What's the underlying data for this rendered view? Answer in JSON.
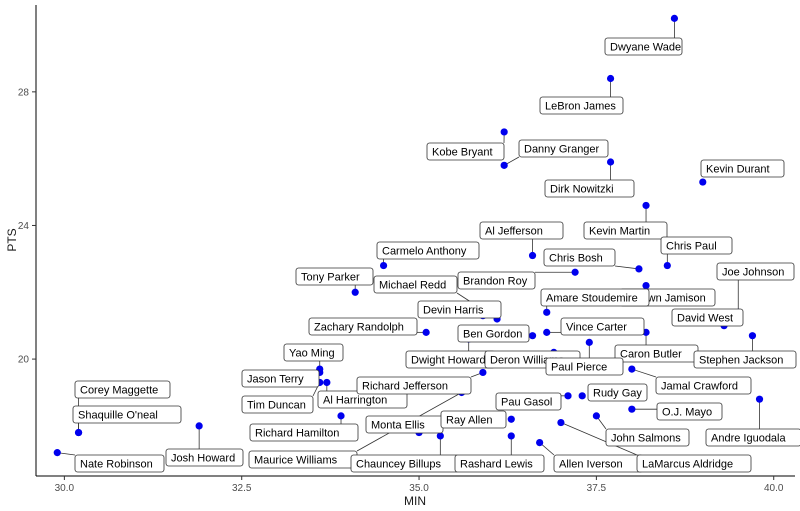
{
  "chart_data": {
    "type": "scatter",
    "title": "",
    "xlabel": "MIN",
    "ylabel": "PTS",
    "xlim": [
      29.6,
      40.3
    ],
    "ylim": [
      16.5,
      30.6
    ],
    "xticks": [
      30.0,
      32.5,
      35.0,
      37.5,
      40.0
    ],
    "xtick_labels": [
      "30.0",
      "32.5",
      "35.0",
      "37.5",
      "40.0"
    ],
    "yticks": [
      20,
      24,
      28
    ],
    "ytick_labels": [
      "20",
      "24",
      "28"
    ],
    "grid": false,
    "legend": "none",
    "colors": {
      "point": "#0000EE",
      "label_border": "#333333",
      "label_fill": "#FFFFFF"
    },
    "points": [
      {
        "name": "Dwyane Wade",
        "x": 38.6,
        "y": 30.2
      },
      {
        "name": "LeBron James",
        "x": 37.7,
        "y": 28.4
      },
      {
        "name": "Kobe Bryant",
        "x": 36.2,
        "y": 26.8
      },
      {
        "name": "Danny Granger",
        "x": 36.2,
        "y": 25.8
      },
      {
        "name": "Dirk Nowitzki",
        "x": 37.7,
        "y": 25.9
      },
      {
        "name": "Kevin Durant",
        "x": 39.0,
        "y": 25.3
      },
      {
        "name": "Kevin Martin",
        "x": 38.2,
        "y": 24.6
      },
      {
        "name": "Al Jefferson",
        "x": 36.6,
        "y": 23.1
      },
      {
        "name": "Chris Bosh",
        "x": 38.1,
        "y": 22.7
      },
      {
        "name": "Chris Paul",
        "x": 38.5,
        "y": 22.8
      },
      {
        "name": "Carmelo Anthony",
        "x": 34.5,
        "y": 22.8
      },
      {
        "name": "Brandon Roy",
        "x": 37.2,
        "y": 22.6
      },
      {
        "name": "Antawn Jamison",
        "x": 38.2,
        "y": 22.2
      },
      {
        "name": "Joe Johnson",
        "x": 39.5,
        "y": 21.4
      },
      {
        "name": "Tony Parker",
        "x": 34.1,
        "y": 22.0
      },
      {
        "name": "Michael Redd",
        "x": 36.1,
        "y": 21.2
      },
      {
        "name": "Amare Stoudemire",
        "x": 36.8,
        "y": 21.4
      },
      {
        "name": "Devin Harris",
        "x": 35.9,
        "y": 21.3
      },
      {
        "name": "David West",
        "x": 39.3,
        "y": 21.0
      },
      {
        "name": "Zachary Randolph",
        "x": 35.1,
        "y": 20.8
      },
      {
        "name": "Vince Carter",
        "x": 36.8,
        "y": 20.8
      },
      {
        "name": "Ben Gordon",
        "x": 36.6,
        "y": 20.7
      },
      {
        "name": "Caron Butler",
        "x": 38.2,
        "y": 20.8
      },
      {
        "name": "Stephen Jackson",
        "x": 39.7,
        "y": 20.7
      },
      {
        "name": "Yao Ming",
        "x": 33.6,
        "y": 19.7
      },
      {
        "name": "Jason Terry",
        "x": 33.6,
        "y": 19.6
      },
      {
        "name": "Dwight Howard",
        "x": 35.7,
        "y": 20.6
      },
      {
        "name": "Deron Williams",
        "x": 36.9,
        "y": 20.2
      },
      {
        "name": "Paul Pierce",
        "x": 37.4,
        "y": 20.5
      },
      {
        "name": "Jamal Crawford",
        "x": 38.0,
        "y": 19.7
      },
      {
        "name": "Al Harrington",
        "x": 33.7,
        "y": 19.3
      },
      {
        "name": "Richard Jefferson",
        "x": 35.9,
        "y": 19.6
      },
      {
        "name": "Tim Duncan",
        "x": 33.6,
        "y": 19.3
      },
      {
        "name": "Rudy Gay",
        "x": 37.3,
        "y": 18.9
      },
      {
        "name": "Pau Gasol",
        "x": 37.1,
        "y": 18.9
      },
      {
        "name": "O.J. Mayo",
        "x": 38.0,
        "y": 18.5
      },
      {
        "name": "Andre Iguodala",
        "x": 39.8,
        "y": 18.8
      },
      {
        "name": "Corey Maggette",
        "x": 30.2,
        "y": 17.8
      },
      {
        "name": "Shaquille O'neal",
        "x": 30.2,
        "y": 17.8
      },
      {
        "name": "Josh Howard",
        "x": 31.9,
        "y": 18.0
      },
      {
        "name": "Richard Hamilton",
        "x": 33.9,
        "y": 18.3
      },
      {
        "name": "Monta Ellis",
        "x": 35.0,
        "y": 17.8
      },
      {
        "name": "Ray Allen",
        "x": 36.3,
        "y": 18.2
      },
      {
        "name": "John Salmons",
        "x": 37.5,
        "y": 18.3
      },
      {
        "name": "Maurice Williams",
        "x": 35.6,
        "y": 19.0
      },
      {
        "name": "Chauncey Billups",
        "x": 35.3,
        "y": 17.7
      },
      {
        "name": "Rashard Lewis",
        "x": 36.3,
        "y": 17.7
      },
      {
        "name": "Allen Iverson",
        "x": 36.7,
        "y": 17.5
      },
      {
        "name": "LaMarcus Aldridge",
        "x": 37.0,
        "y": 18.1
      },
      {
        "name": "Nate Robinson",
        "x": 29.9,
        "y": 17.2
      }
    ]
  }
}
